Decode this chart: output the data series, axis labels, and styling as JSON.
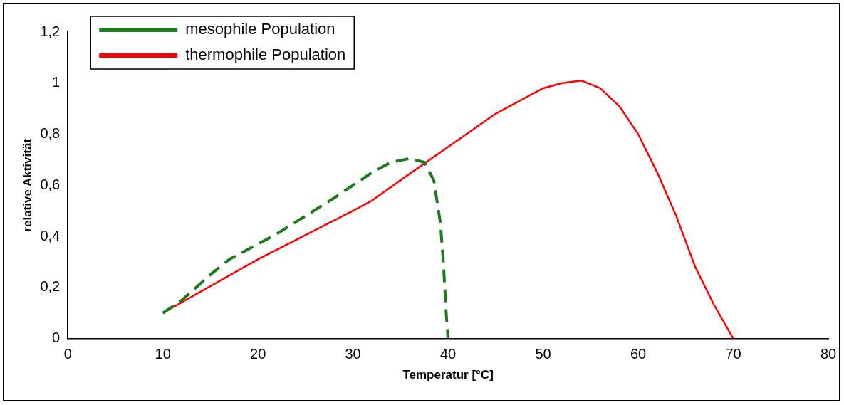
{
  "chart_data": {
    "type": "line",
    "xlabel": "Temperatur [°C]",
    "ylabel": "relative Aktivität",
    "xlim": [
      0,
      80
    ],
    "xticks": [
      0,
      10,
      20,
      30,
      40,
      50,
      60,
      70,
      80
    ],
    "ylim": [
      0,
      1.2
    ],
    "yticks": [
      0,
      {
        "value": 0.2,
        "label": "0,2"
      },
      {
        "value": 0.4,
        "label": "0,4"
      },
      {
        "value": 0.6,
        "label": "0,6"
      },
      {
        "value": 0.8,
        "label": "0,8"
      },
      1,
      {
        "value": 1.2,
        "label": "1,2"
      }
    ],
    "grid": false,
    "legend": "top left",
    "marker": "none",
    "series": [
      {
        "name": "mesophile Population",
        "color": "#1e7a1e",
        "line_style": "dashed",
        "x": [
          10,
          12,
          15,
          17,
          20,
          22,
          25,
          28,
          30,
          32,
          34,
          36,
          37.5,
          38.5,
          39.2,
          39.5,
          39.8,
          40
        ],
        "values": [
          0.1,
          0.15,
          0.25,
          0.31,
          0.37,
          0.41,
          0.48,
          0.55,
          0.6,
          0.65,
          0.69,
          0.705,
          0.69,
          0.62,
          0.45,
          0.3,
          0.1,
          0
        ]
      },
      {
        "name": "thermophile Population",
        "color": "#ff0000",
        "line_style": "solid",
        "x": [
          10,
          20,
          30,
          32,
          35,
          40,
          45,
          50,
          52,
          54,
          56,
          58,
          60,
          62,
          64,
          66,
          68,
          70
        ],
        "values": [
          0.1,
          0.31,
          0.5,
          0.54,
          0.62,
          0.75,
          0.88,
          0.98,
          1.0,
          1.01,
          0.98,
          0.91,
          0.8,
          0.65,
          0.48,
          0.28,
          0.13,
          0
        ]
      }
    ]
  }
}
